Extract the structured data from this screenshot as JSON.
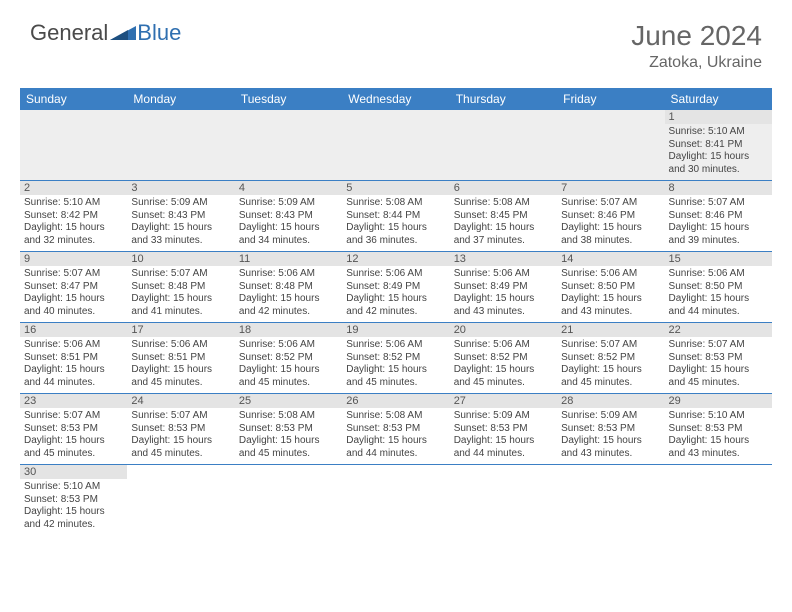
{
  "logo": {
    "text_a": "General",
    "text_b": "Blue"
  },
  "title": "June 2024",
  "location": "Zatoka, Ukraine",
  "colors": {
    "header_bg": "#3b7fc4",
    "header_text": "#ffffff",
    "daynum_bg": "#e4e4e4",
    "row_divider": "#3b7fc4",
    "empty_bg": "#eeeeee",
    "logo_blue": "#2f6fb0",
    "text": "#444444"
  },
  "weekdays": [
    "Sunday",
    "Monday",
    "Tuesday",
    "Wednesday",
    "Thursday",
    "Friday",
    "Saturday"
  ],
  "weeks": [
    [
      null,
      null,
      null,
      null,
      null,
      null,
      {
        "d": "1",
        "sr": "5:10 AM",
        "ss": "8:41 PM",
        "dl": "15 hours and 30 minutes."
      }
    ],
    [
      {
        "d": "2",
        "sr": "5:10 AM",
        "ss": "8:42 PM",
        "dl": "15 hours and 32 minutes."
      },
      {
        "d": "3",
        "sr": "5:09 AM",
        "ss": "8:43 PM",
        "dl": "15 hours and 33 minutes."
      },
      {
        "d": "4",
        "sr": "5:09 AM",
        "ss": "8:43 PM",
        "dl": "15 hours and 34 minutes."
      },
      {
        "d": "5",
        "sr": "5:08 AM",
        "ss": "8:44 PM",
        "dl": "15 hours and 36 minutes."
      },
      {
        "d": "6",
        "sr": "5:08 AM",
        "ss": "8:45 PM",
        "dl": "15 hours and 37 minutes."
      },
      {
        "d": "7",
        "sr": "5:07 AM",
        "ss": "8:46 PM",
        "dl": "15 hours and 38 minutes."
      },
      {
        "d": "8",
        "sr": "5:07 AM",
        "ss": "8:46 PM",
        "dl": "15 hours and 39 minutes."
      }
    ],
    [
      {
        "d": "9",
        "sr": "5:07 AM",
        "ss": "8:47 PM",
        "dl": "15 hours and 40 minutes."
      },
      {
        "d": "10",
        "sr": "5:07 AM",
        "ss": "8:48 PM",
        "dl": "15 hours and 41 minutes."
      },
      {
        "d": "11",
        "sr": "5:06 AM",
        "ss": "8:48 PM",
        "dl": "15 hours and 42 minutes."
      },
      {
        "d": "12",
        "sr": "5:06 AM",
        "ss": "8:49 PM",
        "dl": "15 hours and 42 minutes."
      },
      {
        "d": "13",
        "sr": "5:06 AM",
        "ss": "8:49 PM",
        "dl": "15 hours and 43 minutes."
      },
      {
        "d": "14",
        "sr": "5:06 AM",
        "ss": "8:50 PM",
        "dl": "15 hours and 43 minutes."
      },
      {
        "d": "15",
        "sr": "5:06 AM",
        "ss": "8:50 PM",
        "dl": "15 hours and 44 minutes."
      }
    ],
    [
      {
        "d": "16",
        "sr": "5:06 AM",
        "ss": "8:51 PM",
        "dl": "15 hours and 44 minutes."
      },
      {
        "d": "17",
        "sr": "5:06 AM",
        "ss": "8:51 PM",
        "dl": "15 hours and 45 minutes."
      },
      {
        "d": "18",
        "sr": "5:06 AM",
        "ss": "8:52 PM",
        "dl": "15 hours and 45 minutes."
      },
      {
        "d": "19",
        "sr": "5:06 AM",
        "ss": "8:52 PM",
        "dl": "15 hours and 45 minutes."
      },
      {
        "d": "20",
        "sr": "5:06 AM",
        "ss": "8:52 PM",
        "dl": "15 hours and 45 minutes."
      },
      {
        "d": "21",
        "sr": "5:07 AM",
        "ss": "8:52 PM",
        "dl": "15 hours and 45 minutes."
      },
      {
        "d": "22",
        "sr": "5:07 AM",
        "ss": "8:53 PM",
        "dl": "15 hours and 45 minutes."
      }
    ],
    [
      {
        "d": "23",
        "sr": "5:07 AM",
        "ss": "8:53 PM",
        "dl": "15 hours and 45 minutes."
      },
      {
        "d": "24",
        "sr": "5:07 AM",
        "ss": "8:53 PM",
        "dl": "15 hours and 45 minutes."
      },
      {
        "d": "25",
        "sr": "5:08 AM",
        "ss": "8:53 PM",
        "dl": "15 hours and 45 minutes."
      },
      {
        "d": "26",
        "sr": "5:08 AM",
        "ss": "8:53 PM",
        "dl": "15 hours and 44 minutes."
      },
      {
        "d": "27",
        "sr": "5:09 AM",
        "ss": "8:53 PM",
        "dl": "15 hours and 44 minutes."
      },
      {
        "d": "28",
        "sr": "5:09 AM",
        "ss": "8:53 PM",
        "dl": "15 hours and 43 minutes."
      },
      {
        "d": "29",
        "sr": "5:10 AM",
        "ss": "8:53 PM",
        "dl": "15 hours and 43 minutes."
      }
    ],
    [
      {
        "d": "30",
        "sr": "5:10 AM",
        "ss": "8:53 PM",
        "dl": "15 hours and 42 minutes."
      },
      null,
      null,
      null,
      null,
      null,
      null
    ]
  ],
  "labels": {
    "sunrise": "Sunrise: ",
    "sunset": "Sunset: ",
    "daylight": "Daylight: "
  }
}
